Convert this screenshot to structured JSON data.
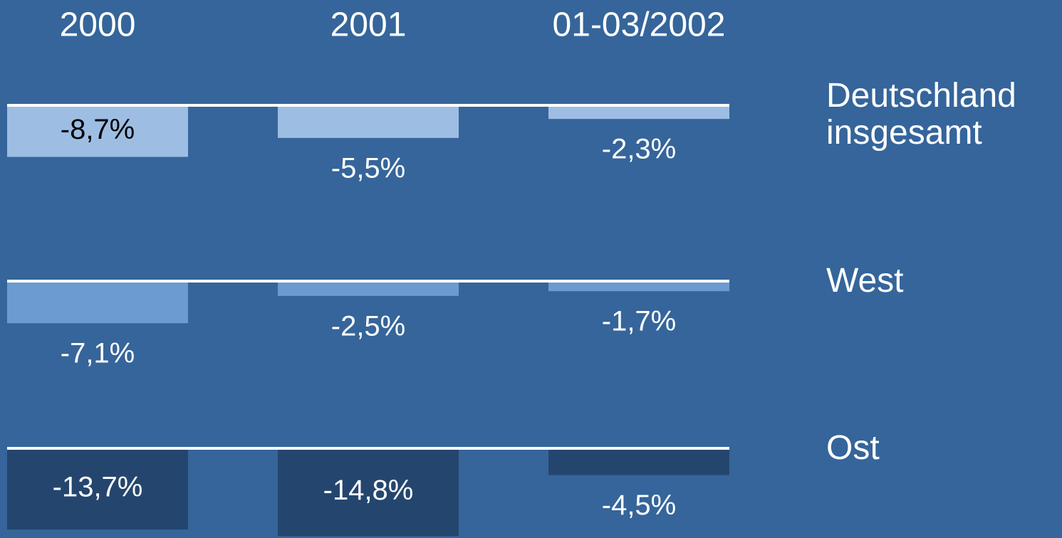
{
  "chart_data": {
    "type": "bar",
    "categories": [
      "2000",
      "2001",
      "01-03/2002"
    ],
    "ylim": [
      -15,
      0
    ],
    "series": [
      {
        "name": "Deutschland insgesamt",
        "color": "#9dbde3",
        "values": [
          -8.7,
          -5.5,
          -2.3
        ],
        "value_labels": [
          "-8,7%",
          "-5,5%",
          "-2,3%"
        ]
      },
      {
        "name": "West",
        "color": "#6b9bd0",
        "values": [
          -7.1,
          -2.5,
          -1.7
        ],
        "value_labels": [
          "-7,1%",
          "-2,5%",
          "-1,7%"
        ]
      },
      {
        "name": "Ost",
        "color": "#24466e",
        "values": [
          -13.7,
          -14.8,
          -4.5
        ],
        "value_labels": [
          "-13,7%",
          "-14,8%",
          "-4,5%"
        ]
      }
    ]
  }
}
